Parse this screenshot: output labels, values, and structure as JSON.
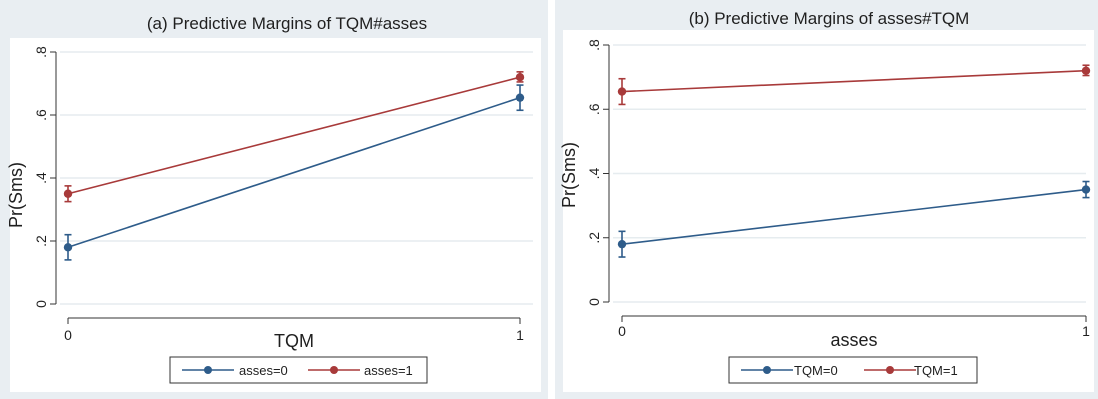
{
  "chart_data": [
    {
      "type": "line",
      "title": "(a) Predictive Margins of TQM#asses",
      "xlabel": "TQM",
      "ylabel": "Pr(Sms)",
      "x": [
        0,
        1
      ],
      "x_ticks": [
        "0",
        "1"
      ],
      "ylim": [
        0,
        0.8
      ],
      "y_ticks": [
        "0",
        ".2",
        ".4",
        ".6",
        ".8"
      ],
      "grid": true,
      "legend_position": "bottom",
      "series": [
        {
          "name": "asses=0",
          "color": "#2e5c8a",
          "values": [
            0.18,
            0.655
          ],
          "ci_low": [
            0.14,
            0.615
          ],
          "ci_high": [
            0.22,
            0.695
          ]
        },
        {
          "name": "asses=1",
          "color": "#a83a3a",
          "values": [
            0.35,
            0.72
          ],
          "ci_low": [
            0.325,
            0.705
          ],
          "ci_high": [
            0.375,
            0.737
          ]
        }
      ]
    },
    {
      "type": "line",
      "title": "(b) Predictive Margins of asses#TQM",
      "xlabel": "asses",
      "ylabel": "Pr(Sms)",
      "x": [
        0,
        1
      ],
      "x_ticks": [
        "0",
        "1"
      ],
      "ylim": [
        0,
        0.8
      ],
      "y_ticks": [
        "0",
        ".2",
        ".4",
        ".6",
        ".8"
      ],
      "grid": true,
      "legend_position": "bottom",
      "series": [
        {
          "name": "TQM=0",
          "color": "#2e5c8a",
          "values": [
            0.18,
            0.35
          ],
          "ci_low": [
            0.14,
            0.325
          ],
          "ci_high": [
            0.22,
            0.375
          ]
        },
        {
          "name": "TQM=1",
          "color": "#a83a3a",
          "values": [
            0.655,
            0.72
          ],
          "ci_low": [
            0.615,
            0.705
          ],
          "ci_high": [
            0.695,
            0.737
          ]
        }
      ]
    }
  ]
}
